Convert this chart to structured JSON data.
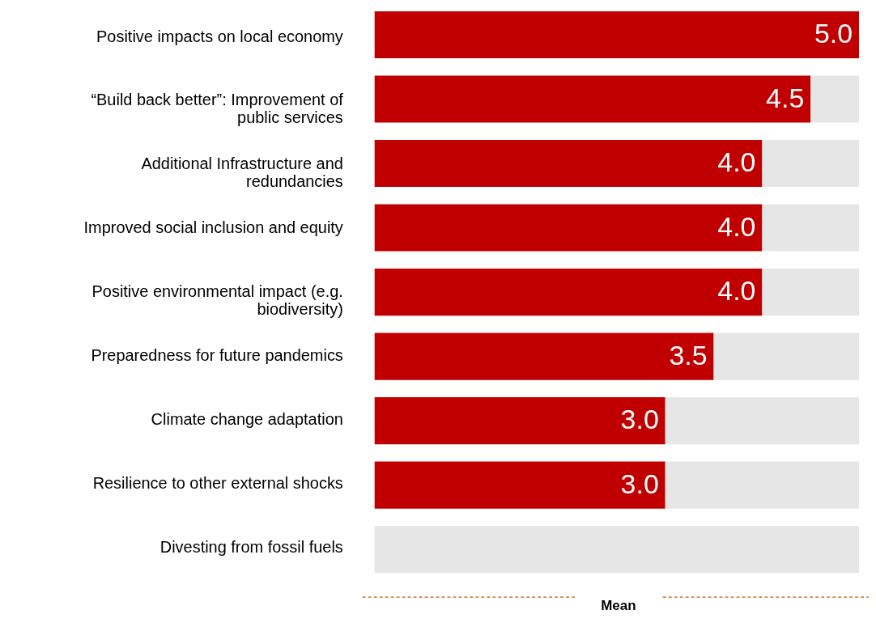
{
  "chart_data": {
    "type": "bar",
    "orientation": "horizontal",
    "stacked": true,
    "categories": [
      "Positive impacts on local economy",
      "“Build back better”:  Improvement of public services",
      "Additional Infrastructure and redundancies",
      "Improved social inclusion and equity",
      "Positive environmental impact (e.g. biodiversity)",
      "Preparedness for future pandemics",
      "Climate change adaptation",
      "Resilience to other external shocks",
      "Divesting from fossil fuels"
    ],
    "series": [
      {
        "color": "#c00000",
        "values": [
          5.0,
          4.5,
          4.0,
          4.0,
          4.0,
          3.5,
          3.0,
          3.0,
          0
        ],
        "value_labels": [
          "5.0",
          "4.5",
          "4.0",
          "4.0",
          "4.0",
          "3.5",
          "3.0",
          "3.0",
          null
        ]
      },
      {
        "color": "#e6e6e6",
        "values": [
          0,
          0.5,
          1.0,
          1.0,
          1.0,
          1.5,
          2.0,
          2.0,
          5.0
        ]
      }
    ],
    "annotations": [
      "Mean"
    ]
  }
}
